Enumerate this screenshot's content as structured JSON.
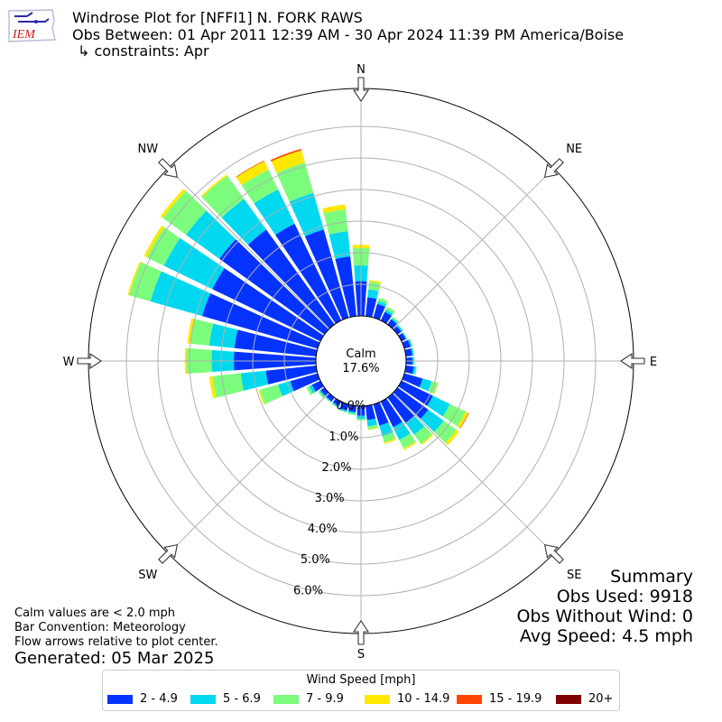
{
  "logo": {
    "text": "IEM"
  },
  "header": {
    "title": "Windrose Plot for [NFFI1] N. FORK RAWS",
    "subtitle": "Obs Between: 01 Apr 2011 12:39 AM - 30 Apr 2024 11:39 PM America/Boise",
    "constraints": "↳ constraints: Apr"
  },
  "notes": {
    "calm_def": "Calm values are < 2.0 mph",
    "convention": "Bar Convention: Meteorology",
    "arrows": "Flow arrows relative to plot center.",
    "generated": "Generated: 05 Mar 2025"
  },
  "summary": {
    "title": "Summary",
    "obs_used": "Obs Used: 9918",
    "obs_without_wind": "Obs Without Wind: 0",
    "avg_speed": "Avg Speed: 4.5 mph"
  },
  "legend": {
    "title": "Wind Speed [mph]",
    "items": [
      {
        "label": "2 - 4.9",
        "color": "#0433ff"
      },
      {
        "label": "5 - 6.9",
        "color": "#00d8f0"
      },
      {
        "label": "7 - 9.9",
        "color": "#7cfc7c"
      },
      {
        "label": "10 - 14.9",
        "color": "#ffe800"
      },
      {
        "label": "15 - 19.9",
        "color": "#ff4500"
      },
      {
        "label": "20+",
        "color": "#800000"
      }
    ]
  },
  "chart_data": {
    "type": "windrose",
    "calm_label": "Calm",
    "calm_percent": "17.6%",
    "direction_labels": [
      "N",
      "NE",
      "E",
      "SE",
      "S",
      "SW",
      "W",
      "NW"
    ],
    "radial_ticks": [
      "0.0%",
      "1.0%",
      "2.0%",
      "3.0%",
      "4.0%",
      "5.0%",
      "6.0%"
    ],
    "radial_max": 7.2,
    "bins": [
      "2 - 4.9",
      "5 - 6.9",
      "7 - 9.9",
      "10 - 14.9",
      "15 - 19.9",
      "20+"
    ],
    "sectors": [
      {
        "dir": 0,
        "values": [
          1.1,
          0.5,
          0.55,
          0.1,
          0.0,
          0.0
        ]
      },
      {
        "dir": 10,
        "values": [
          0.6,
          0.25,
          0.25,
          0.05,
          0.0,
          0.0
        ]
      },
      {
        "dir": 20,
        "values": [
          0.45,
          0.1,
          0.1,
          0.0,
          0.0,
          0.0
        ]
      },
      {
        "dir": 30,
        "values": [
          0.3,
          0.08,
          0.1,
          0.0,
          0.0,
          0.0
        ]
      },
      {
        "dir": 40,
        "values": [
          0.2,
          0.05,
          0.05,
          0.0,
          0.0,
          0.0
        ]
      },
      {
        "dir": 50,
        "values": [
          0.15,
          0.05,
          0.02,
          0.0,
          0.0,
          0.0
        ]
      },
      {
        "dir": 60,
        "values": [
          0.15,
          0.03,
          0.02,
          0.0,
          0.0,
          0.0
        ]
      },
      {
        "dir": 70,
        "values": [
          0.2,
          0.05,
          0.03,
          0.0,
          0.0,
          0.0
        ]
      },
      {
        "dir": 80,
        "values": [
          0.2,
          0.05,
          0.02,
          0.0,
          0.0,
          0.0
        ]
      },
      {
        "dir": 90,
        "values": [
          0.2,
          0.05,
          0.02,
          0.0,
          0.0,
          0.0
        ]
      },
      {
        "dir": 100,
        "values": [
          0.25,
          0.07,
          0.03,
          0.0,
          0.0,
          0.0
        ]
      },
      {
        "dir": 110,
        "values": [
          0.6,
          0.3,
          0.2,
          0.02,
          0.0,
          0.0
        ]
      },
      {
        "dir": 120,
        "values": [
          1.1,
          0.6,
          0.55,
          0.1,
          0.02,
          0.0
        ]
      },
      {
        "dir": 130,
        "values": [
          1.2,
          0.6,
          0.5,
          0.1,
          0.0,
          0.0
        ]
      },
      {
        "dir": 140,
        "values": [
          1.0,
          0.45,
          0.35,
          0.05,
          0.0,
          0.0
        ]
      },
      {
        "dir": 150,
        "values": [
          0.9,
          0.45,
          0.3,
          0.05,
          0.0,
          0.0
        ]
      },
      {
        "dir": 160,
        "values": [
          0.7,
          0.35,
          0.2,
          0.05,
          0.0,
          0.0
        ]
      },
      {
        "dir": 170,
        "values": [
          0.45,
          0.2,
          0.1,
          0.02,
          0.0,
          0.0
        ]
      },
      {
        "dir": 180,
        "values": [
          0.3,
          0.1,
          0.05,
          0.0,
          0.0,
          0.0
        ]
      },
      {
        "dir": 190,
        "values": [
          0.2,
          0.05,
          0.05,
          0.0,
          0.0,
          0.0
        ]
      },
      {
        "dir": 200,
        "values": [
          0.2,
          0.05,
          0.02,
          0.0,
          0.0,
          0.0
        ]
      },
      {
        "dir": 210,
        "values": [
          0.15,
          0.05,
          0.02,
          0.0,
          0.0,
          0.0
        ]
      },
      {
        "dir": 220,
        "values": [
          0.15,
          0.03,
          0.02,
          0.0,
          0.0,
          0.0
        ]
      },
      {
        "dir": 230,
        "values": [
          0.15,
          0.05,
          0.05,
          0.0,
          0.0,
          0.0
        ]
      },
      {
        "dir": 240,
        "values": [
          0.3,
          0.1,
          0.1,
          0.0,
          0.0,
          0.0
        ]
      },
      {
        "dir": 250,
        "values": [
          0.9,
          0.4,
          0.6,
          0.05,
          0.0,
          0.0
        ]
      },
      {
        "dir": 260,
        "values": [
          1.6,
          0.8,
          0.9,
          0.1,
          0.0,
          0.0
        ]
      },
      {
        "dir": 270,
        "values": [
          2.6,
          0.7,
          0.8,
          0.05,
          0.0,
          0.0
        ]
      },
      {
        "dir": 280,
        "values": [
          2.6,
          0.8,
          0.6,
          0.1,
          0.0,
          0.0
        ]
      },
      {
        "dir": 290,
        "values": [
          3.8,
          1.7,
          0.7,
          0.05,
          0.0,
          0.0
        ]
      },
      {
        "dir": 300,
        "values": [
          3.8,
          1.7,
          0.6,
          0.1,
          0.0,
          0.0
        ]
      },
      {
        "dir": 310,
        "values": [
          4.1,
          1.3,
          0.9,
          0.1,
          0.0,
          0.0
        ]
      },
      {
        "dir": 320,
        "values": [
          3.7,
          1.2,
          0.9,
          0.05,
          0.0,
          0.0
        ]
      },
      {
        "dir": 330,
        "values": [
          3.4,
          1.2,
          0.7,
          0.3,
          0.02,
          0.0
        ]
      },
      {
        "dir": 340,
        "values": [
          2.9,
          1.2,
          1.0,
          0.4,
          0.05,
          0.0
        ]
      },
      {
        "dir": 350,
        "values": [
          1.9,
          0.8,
          0.7,
          0.15,
          0.0,
          0.0
        ]
      }
    ]
  }
}
